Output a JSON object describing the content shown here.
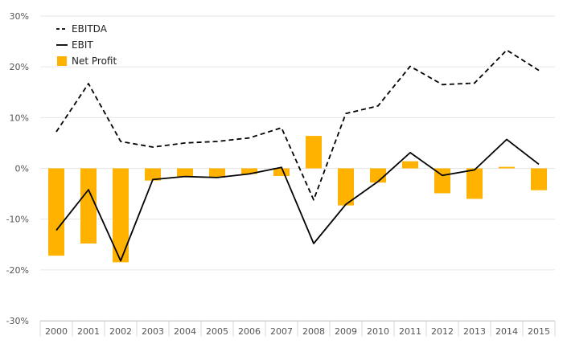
{
  "chart_data": {
    "type": "bar",
    "categories": [
      "2000",
      "2001",
      "2002",
      "2003",
      "2004",
      "2005",
      "2006",
      "2007",
      "2008",
      "2009",
      "2010",
      "2011",
      "2012",
      "2013",
      "2014",
      "2015"
    ],
    "title": "",
    "xlabel": "",
    "ylabel": "",
    "ylim": [
      -30,
      30
    ],
    "y_ticks": [
      30,
      20,
      10,
      0,
      -10,
      -20,
      -30
    ],
    "y_tick_labels": [
      "30%",
      "20%",
      "10%",
      "0%",
      "-10%",
      "-20%",
      "-30%"
    ],
    "grid": true,
    "legend_position": "top-left",
    "series": [
      {
        "name": "EBITDA",
        "kind": "line",
        "style": "dashed",
        "color": "#000000",
        "values": [
          7.2,
          16.7,
          5.3,
          4.2,
          5.0,
          5.3,
          6.0,
          8.0,
          -6.2,
          10.8,
          12.3,
          20.1,
          16.5,
          16.8,
          23.3,
          19.3
        ]
      },
      {
        "name": "EBIT",
        "kind": "line",
        "style": "solid",
        "color": "#000000",
        "values": [
          -12.2,
          -4.2,
          -18.2,
          -2.2,
          -1.6,
          -1.8,
          -1.1,
          0.2,
          -14.8,
          -7.1,
          -2.6,
          3.1,
          -1.4,
          -0.3,
          5.7,
          0.8
        ]
      },
      {
        "name": "Net Profit",
        "kind": "bar",
        "color": "#FFB300",
        "values": [
          -17.2,
          -14.8,
          -18.5,
          -2.4,
          -1.6,
          -1.8,
          -1.1,
          -1.5,
          6.4,
          -7.3,
          -2.8,
          1.4,
          -4.9,
          -6.0,
          0.3,
          -4.3
        ]
      }
    ]
  }
}
